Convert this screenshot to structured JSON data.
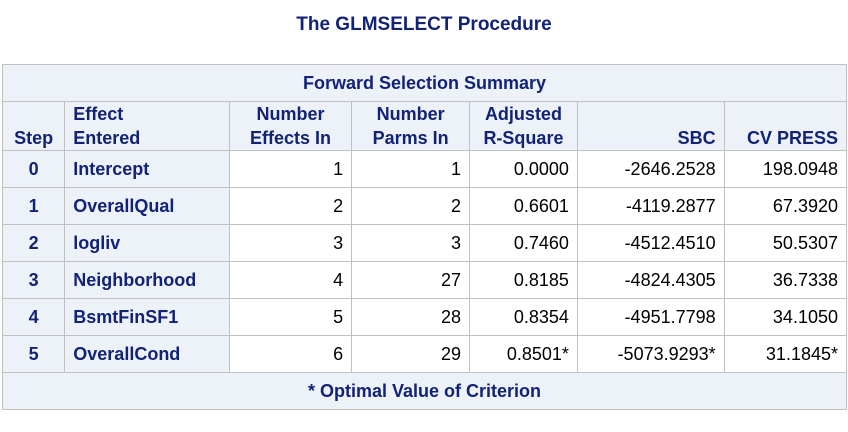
{
  "title": "The GLMSELECT Procedure",
  "table": {
    "caption": "Forward Selection Summary",
    "headers": {
      "step": "Step",
      "effect_1": "Effect",
      "effect_2": "Entered",
      "neff_1": "Number",
      "neff_2": "Effects In",
      "nparm_1": "Number",
      "nparm_2": "Parms In",
      "adj_1": "Adjusted",
      "adj_2": "R-Square",
      "sbc": "SBC",
      "cv": "CV PRESS"
    },
    "rows": [
      {
        "step": "0",
        "effect": "Intercept",
        "neff": "1",
        "nparm": "1",
        "adjrsq": "0.0000",
        "sbc": "-2646.2528",
        "cvpress": "198.0948"
      },
      {
        "step": "1",
        "effect": "OverallQual",
        "neff": "2",
        "nparm": "2",
        "adjrsq": "0.6601",
        "sbc": "-4119.2877",
        "cvpress": "67.3920"
      },
      {
        "step": "2",
        "effect": "logliv",
        "neff": "3",
        "nparm": "3",
        "adjrsq": "0.7460",
        "sbc": "-4512.4510",
        "cvpress": "50.5307"
      },
      {
        "step": "3",
        "effect": "Neighborhood",
        "neff": "4",
        "nparm": "27",
        "adjrsq": "0.8185",
        "sbc": "-4824.4305",
        "cvpress": "36.7338"
      },
      {
        "step": "4",
        "effect": "BsmtFinSF1",
        "neff": "5",
        "nparm": "28",
        "adjrsq": "0.8354",
        "sbc": "-4951.7798",
        "cvpress": "34.1050"
      },
      {
        "step": "5",
        "effect": "OverallCond",
        "neff": "6",
        "nparm": "29",
        "adjrsq": "0.8501*",
        "sbc": "-5073.9293*",
        "cvpress": "31.1845*"
      }
    ],
    "footer": "* Optimal Value of Criterion"
  },
  "colors": {
    "header_bg": "#edf2f9",
    "header_text": "#112277",
    "border": "#c1c1c1"
  }
}
